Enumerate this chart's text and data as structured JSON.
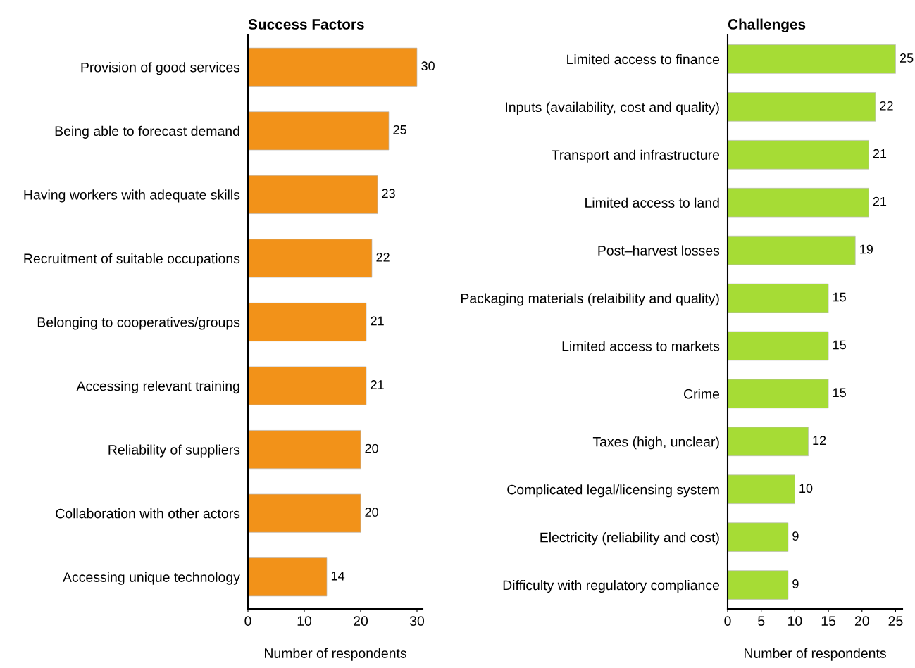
{
  "chart_data": [
    {
      "type": "bar",
      "orientation": "horizontal",
      "title": "Success Factors",
      "xlabel": "Number of respondents",
      "categories": [
        "Provision of good services",
        "Being able to forecast demand",
        "Having workers with adequate skills",
        "Recruitment of suitable occupations",
        "Belonging to cooperatives/groups",
        "Accessing relevant training",
        "Reliability of suppliers",
        "Collaboration with other actors",
        "Accessing unique technology"
      ],
      "values": [
        30,
        25,
        23,
        22,
        21,
        21,
        20,
        20,
        14
      ],
      "color": "#f29219",
      "xlim": [
        0,
        31
      ],
      "xticks": [
        0,
        10,
        20,
        30
      ],
      "data_labels": true,
      "grid": false,
      "legend": false
    },
    {
      "type": "bar",
      "orientation": "horizontal",
      "title": "Challenges",
      "xlabel": "Number of respondents",
      "categories": [
        "Limited access to finance",
        "Inputs (availability, cost and quality)",
        "Transport and infrastructure",
        "Limited access to land",
        "Post–harvest losses",
        "Packaging materials (relaibility and quality)",
        "Limited access to markets",
        "Crime",
        "Taxes (high, unclear)",
        "Complicated legal/licensing system",
        "Electricity (reliability and cost)",
        "Difficulty with regulatory compliance"
      ],
      "values": [
        25,
        22,
        21,
        21,
        19,
        15,
        15,
        15,
        12,
        10,
        9,
        9
      ],
      "color": "#a6dc35",
      "xlim": [
        0,
        26
      ],
      "xticks": [
        0,
        5,
        10,
        15,
        20,
        25
      ],
      "data_labels": true,
      "grid": false,
      "legend": false
    }
  ]
}
